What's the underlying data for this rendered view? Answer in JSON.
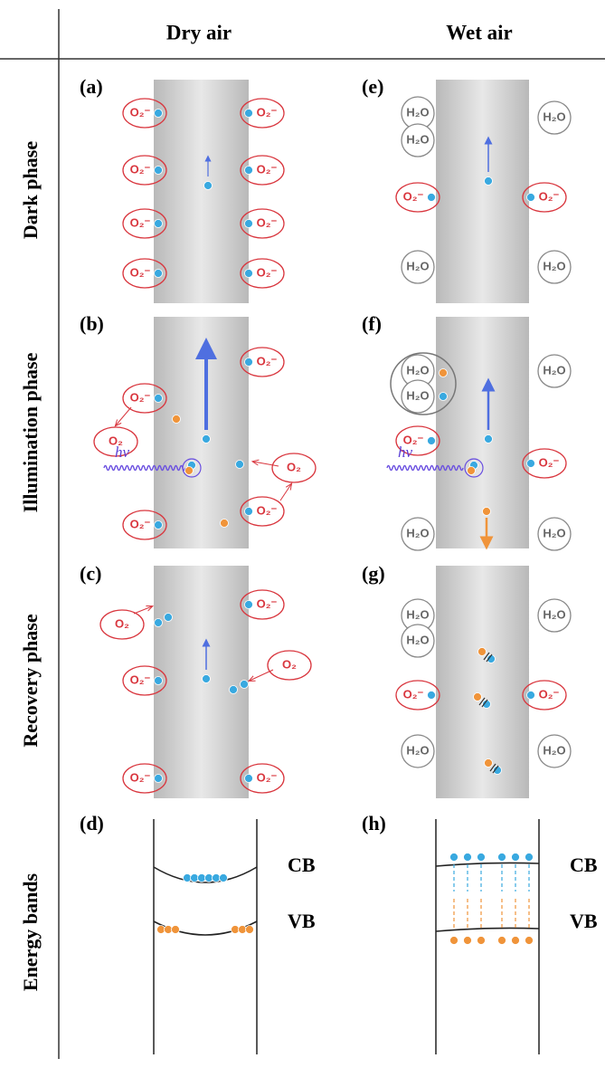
{
  "header": {
    "columns": [
      "Dry air",
      "Wet air"
    ]
  },
  "rows": [
    "Dark phase",
    "Illumination phase",
    "Recovery phase",
    "Energy bands"
  ],
  "panels": [
    {
      "label": "(a)",
      "molecules": [
        "O₂⁻",
        "O₂⁻",
        "O₂⁻",
        "O₂⁻",
        "O₂⁻",
        "O₂⁻",
        "O₂⁻",
        "O₂⁻"
      ]
    },
    {
      "label": "(b)",
      "molecules": [
        "O₂⁻",
        "O₂",
        "O₂⁻",
        "O₂",
        "O₂⁻",
        "O₂⁻"
      ],
      "photon": "hν"
    },
    {
      "label": "(c)",
      "molecules": [
        "O₂",
        "O₂⁻",
        "O₂",
        "O₂⁻",
        "O₂⁻",
        "O₂⁻"
      ]
    },
    {
      "label": "(d)",
      "bands": [
        "CB",
        "VB"
      ]
    },
    {
      "label": "(e)",
      "molecules": [
        "H₂O",
        "H₂O",
        "H₂O",
        "O₂⁻",
        "O₂⁻",
        "H₂O",
        "H₂O"
      ]
    },
    {
      "label": "(f)",
      "molecules": [
        "H₂O",
        "H₂O",
        "H₂O",
        "O₂⁻",
        "O₂⁻",
        "H₂O",
        "H₂O"
      ],
      "photon": "hν"
    },
    {
      "label": "(g)",
      "molecules": [
        "H₂O",
        "H₂O",
        "H₂O",
        "O₂⁻",
        "O₂⁻",
        "H₂O",
        "H₂O"
      ]
    },
    {
      "label": "(h)",
      "bands": [
        "CB",
        "VB"
      ]
    }
  ]
}
